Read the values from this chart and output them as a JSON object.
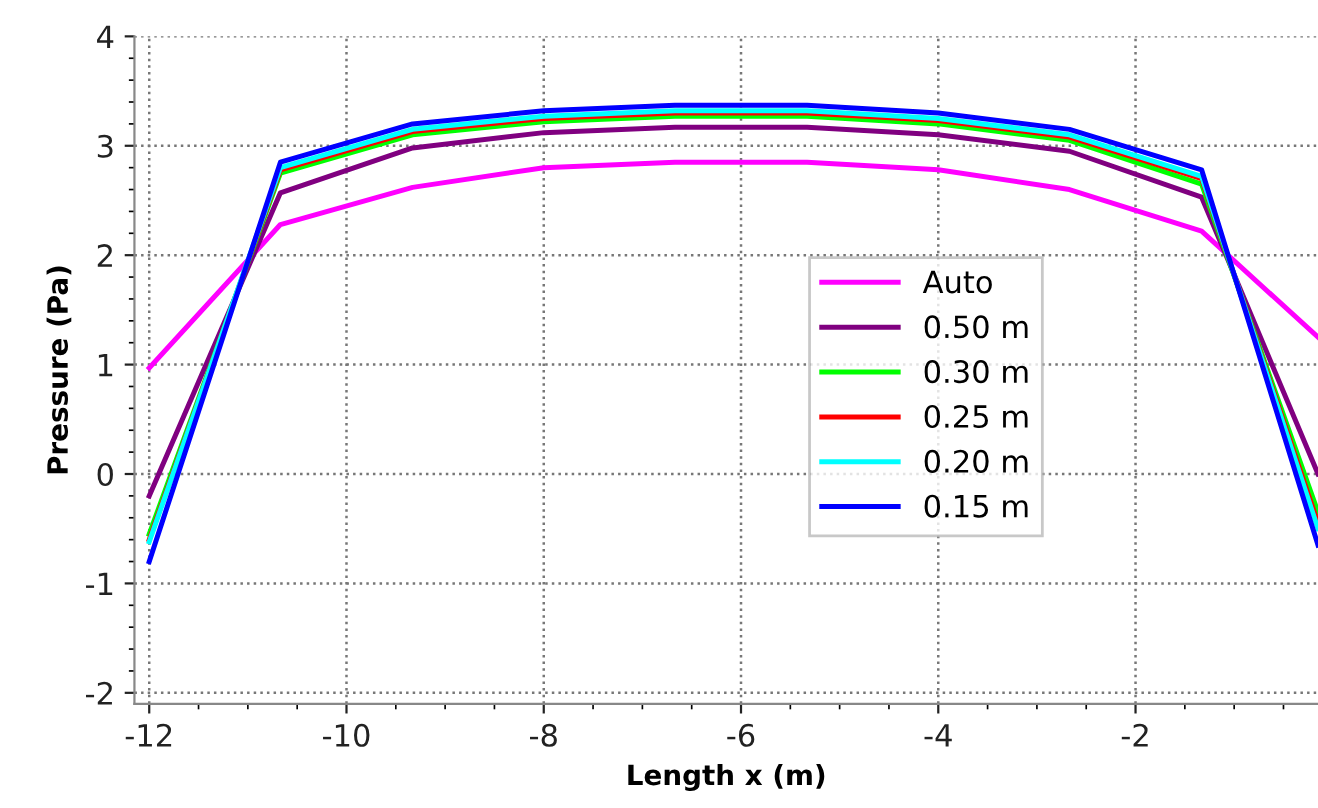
{
  "chart_data": {
    "type": "line",
    "xlabel": "Length x (m)",
    "ylabel": "Pressure (Pa)",
    "x": [
      -12,
      -10.67,
      -9.33,
      -8,
      -6.67,
      -5.33,
      -4,
      -2.67,
      -1.33,
      -0.15
    ],
    "series": [
      {
        "name": "Auto",
        "color": "#ff00ff",
        "values": [
          0.97,
          2.28,
          2.62,
          2.8,
          2.85,
          2.85,
          2.78,
          2.6,
          2.22,
          1.25
        ]
      },
      {
        "name": "0.50 m",
        "color": "#800080",
        "values": [
          -0.2,
          2.57,
          2.98,
          3.12,
          3.17,
          3.17,
          3.1,
          2.95,
          2.53,
          0.0
        ]
      },
      {
        "name": "0.30 m",
        "color": "#00ff00",
        "values": [
          -0.55,
          2.75,
          3.1,
          3.22,
          3.27,
          3.27,
          3.2,
          3.05,
          2.65,
          -0.35
        ]
      },
      {
        "name": "0.25 m",
        "color": "#ff0000",
        "values": [
          -0.6,
          2.78,
          3.13,
          3.25,
          3.3,
          3.3,
          3.23,
          3.08,
          2.7,
          -0.45
        ]
      },
      {
        "name": "0.20 m",
        "color": "#00ffff",
        "values": [
          -0.62,
          2.8,
          3.15,
          3.27,
          3.32,
          3.32,
          3.25,
          3.1,
          2.72,
          -0.5
        ]
      },
      {
        "name": "0.15 m",
        "color": "#0000ff",
        "values": [
          -0.8,
          2.85,
          3.2,
          3.32,
          3.37,
          3.37,
          3.3,
          3.15,
          2.78,
          -0.65
        ]
      }
    ],
    "xlim": [
      -12.15,
      -0.15
    ],
    "xticks": [
      -12,
      -10,
      -8,
      -6,
      -4,
      -2
    ],
    "ylim": [
      -2.1,
      4
    ],
    "yticks": [
      -2,
      -1,
      0,
      1,
      2,
      3,
      4
    ],
    "grid": true,
    "legend": "right",
    "marker": "none",
    "line_style": "solid"
  }
}
